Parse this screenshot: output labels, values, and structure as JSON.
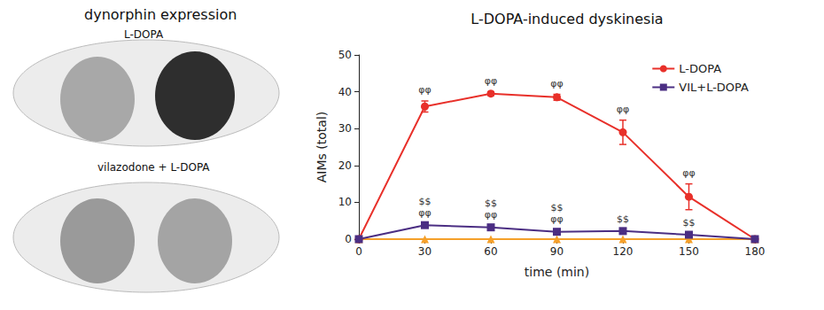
{
  "images": {
    "title": "dynorphin expression",
    "labels": [
      "L-DOPA",
      "vilazodone + L-DOPA"
    ]
  },
  "chart_data": {
    "type": "line",
    "title": "L-DOPA-induced dyskinesia",
    "x_label": "time (min)",
    "y_label": "AIMs (total)",
    "x": [
      0,
      30,
      60,
      90,
      120,
      150,
      180
    ],
    "xlim": [
      0,
      180
    ],
    "xticks": [
      0,
      30,
      60,
      90,
      120,
      150,
      180
    ],
    "ylim": [
      0,
      50
    ],
    "yticks": [
      0,
      10,
      20,
      30,
      40,
      50
    ],
    "grid": false,
    "legend": "upper right",
    "series": [
      {
        "color": "#f5a02a",
        "marker": "triangle",
        "values": [
          0,
          0,
          0,
          0,
          0,
          0,
          0
        ]
      },
      {
        "name": "L-DOPA",
        "color": "#e8302a",
        "marker": "circle",
        "values": [
          0,
          36,
          39.5,
          38.5,
          29,
          11.5,
          0
        ],
        "errors": [
          0,
          1.5,
          0.5,
          0.8,
          3.3,
          3.5,
          0
        ],
        "annotations": [
          null,
          [
            "φφ"
          ],
          [
            "φφ"
          ],
          [
            "φφ"
          ],
          [
            "φφ"
          ],
          [
            "φφ"
          ],
          null
        ]
      },
      {
        "name": "VIL+L-DOPA",
        "color": "#4b2e83",
        "marker": "square",
        "values": [
          0,
          3.8,
          3.2,
          2,
          2.2,
          1.2,
          0
        ],
        "errors": [
          0,
          0.4,
          0.4,
          0.3,
          0.3,
          0.3,
          0
        ],
        "annotations": [
          null,
          [
            "$$",
            "φφ"
          ],
          [
            "$$",
            "φφ"
          ],
          [
            "$$",
            "φφ"
          ],
          [
            "$$"
          ],
          [
            "$$"
          ],
          null
        ]
      }
    ]
  }
}
